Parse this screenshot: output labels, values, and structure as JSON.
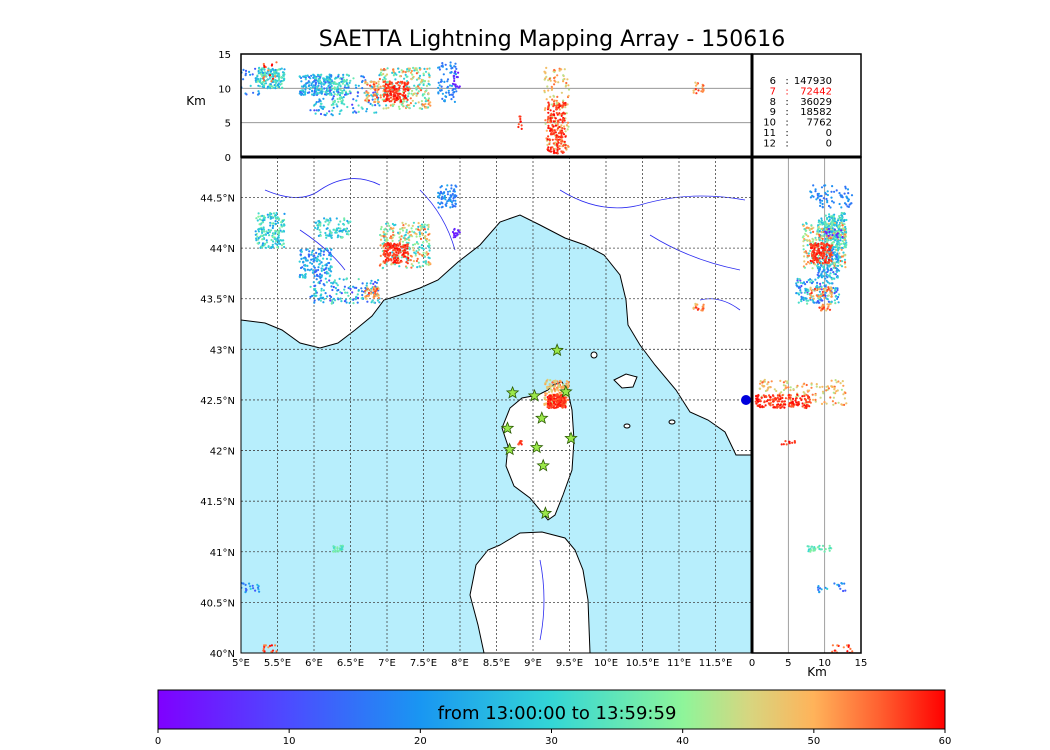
{
  "title": "SAETTA Lightning Mapping Array - 150616",
  "colors": {
    "sea": "#b7eefc",
    "land": "#ffffff",
    "coast": "#000000",
    "river": "#2a2af0",
    "grid": "#444444",
    "station": "#9be84a",
    "station_edge": "#2a5a00",
    "highlight": "#ff0000"
  },
  "icons": {
    "station_marker": "star"
  },
  "chart_data": {
    "type": "scatter",
    "map": {
      "lon_range": [
        5,
        12
      ],
      "lat_range": [
        40,
        44.9
      ],
      "lon_ticks": [
        "5°E",
        "5.5°E",
        "6°E",
        "6.5°E",
        "7°E",
        "7.5°E",
        "8°E",
        "8.5°E",
        "9°E",
        "9.5°E",
        "10°E",
        "10.5°E",
        "11°E",
        "11.5°E"
      ],
      "lat_ticks": [
        "40°N",
        "40.5°N",
        "41°N",
        "41.5°N",
        "42°N",
        "42.5°N",
        "43°N",
        "43.5°N",
        "44°N",
        "44.5°N"
      ],
      "grid": true
    },
    "top_panel": {
      "ylabel": "Km",
      "y_range": [
        0,
        15
      ],
      "y_ticks": [
        "0",
        "5",
        "10",
        "15"
      ]
    },
    "side_panel": {
      "xlabel": "Km",
      "x_range": [
        0,
        15
      ],
      "x_ticks": [
        "0",
        "5",
        "10",
        "15"
      ]
    },
    "stats": [
      {
        "label": "6",
        "sep": ":",
        "value": "147930",
        "highlight": false
      },
      {
        "label": "7",
        "sep": ":",
        "value": "72442",
        "highlight": true
      },
      {
        "label": "8",
        "sep": ":",
        "value": "36029",
        "highlight": false
      },
      {
        "label": "9",
        "sep": ":",
        "value": "18582",
        "highlight": false
      },
      {
        "label": "10",
        "sep": ":",
        "value": "7762",
        "highlight": false
      },
      {
        "label": "11",
        "sep": ":",
        "value": "0",
        "highlight": false
      },
      {
        "label": "12",
        "sep": ":",
        "value": "0",
        "highlight": false
      }
    ],
    "colorbar": {
      "label": "from 13:00:00 to 13:59:59",
      "range": [
        0,
        60
      ],
      "ticks": [
        "0",
        "10",
        "20",
        "30",
        "40",
        "50",
        "60"
      ]
    },
    "stations": [
      [
        9.33,
        42.99
      ],
      [
        8.72,
        42.57
      ],
      [
        9.02,
        42.54
      ],
      [
        9.45,
        42.58
      ],
      [
        9.12,
        42.32
      ],
      [
        8.65,
        42.22
      ],
      [
        9.52,
        42.12
      ],
      [
        8.68,
        42.01
      ],
      [
        9.05,
        42.03
      ],
      [
        9.14,
        41.85
      ],
      [
        9.17,
        41.38
      ]
    ],
    "clusters": [
      {
        "lon": [
          5.2,
          5.6
        ],
        "lat": [
          44.0,
          44.35
        ],
        "alt": [
          10,
          13
        ],
        "time": [
          20,
          40
        ],
        "n": 180
      },
      {
        "lon": [
          5.8,
          6.25
        ],
        "lat": [
          43.7,
          44.0
        ],
        "alt": [
          9,
          12
        ],
        "time": [
          12,
          32
        ],
        "n": 150
      },
      {
        "lon": [
          6.0,
          6.5
        ],
        "lat": [
          44.1,
          44.3
        ],
        "alt": [
          9,
          12
        ],
        "time": [
          22,
          38
        ],
        "n": 90
      },
      {
        "lon": [
          6.9,
          7.6
        ],
        "lat": [
          43.8,
          44.25
        ],
        "alt": [
          7,
          13
        ],
        "time": [
          26,
          56
        ],
        "n": 260
      },
      {
        "lon": [
          6.95,
          7.3
        ],
        "lat": [
          43.85,
          44.05
        ],
        "alt": [
          8,
          11
        ],
        "time": [
          55,
          60
        ],
        "n": 140
      },
      {
        "lon": [
          5.95,
          6.9
        ],
        "lat": [
          43.45,
          43.7
        ],
        "alt": [
          6,
          12
        ],
        "time": [
          8,
          36
        ],
        "n": 150
      },
      {
        "lon": [
          6.7,
          6.9
        ],
        "lat": [
          43.5,
          43.62
        ],
        "alt": [
          8,
          11
        ],
        "time": [
          44,
          58
        ],
        "n": 50
      },
      {
        "lon": [
          7.7,
          7.95
        ],
        "lat": [
          44.4,
          44.62
        ],
        "alt": [
          8,
          14
        ],
        "time": [
          14,
          24
        ],
        "n": 70
      },
      {
        "lon": [
          7.9,
          8.0
        ],
        "lat": [
          44.1,
          44.2
        ],
        "alt": [
          10,
          13
        ],
        "time": [
          2,
          6
        ],
        "n": 15
      },
      {
        "lon": [
          9.15,
          9.5
        ],
        "lat": [
          42.45,
          42.7
        ],
        "alt": [
          1,
          13
        ],
        "time": [
          42,
          55
        ],
        "n": 140
      },
      {
        "lon": [
          9.2,
          9.45
        ],
        "lat": [
          42.42,
          42.55
        ],
        "alt": [
          0.5,
          8
        ],
        "time": [
          55,
          60
        ],
        "n": 160
      },
      {
        "lon": [
          8.8,
          8.85
        ],
        "lat": [
          42.05,
          42.1
        ],
        "alt": [
          4,
          6
        ],
        "time": [
          55,
          60
        ],
        "n": 10
      },
      {
        "lon": [
          11.2,
          11.35
        ],
        "lat": [
          43.38,
          43.45
        ],
        "alt": [
          9,
          11
        ],
        "time": [
          46,
          58
        ],
        "n": 20
      },
      {
        "lon": [
          6.25,
          6.4
        ],
        "lat": [
          41.0,
          41.06
        ],
        "alt": [
          7,
          11
        ],
        "time": [
          30,
          40
        ],
        "n": 30
      },
      {
        "lon": [
          5.0,
          5.25
        ],
        "lat": [
          40.6,
          40.7
        ],
        "alt": [
          9,
          13
        ],
        "time": [
          10,
          30
        ],
        "n": 20
      },
      {
        "lon": [
          5.3,
          5.5
        ],
        "lat": [
          40.0,
          40.08
        ],
        "alt": [
          11,
          14
        ],
        "time": [
          52,
          60
        ],
        "n": 15
      }
    ]
  }
}
